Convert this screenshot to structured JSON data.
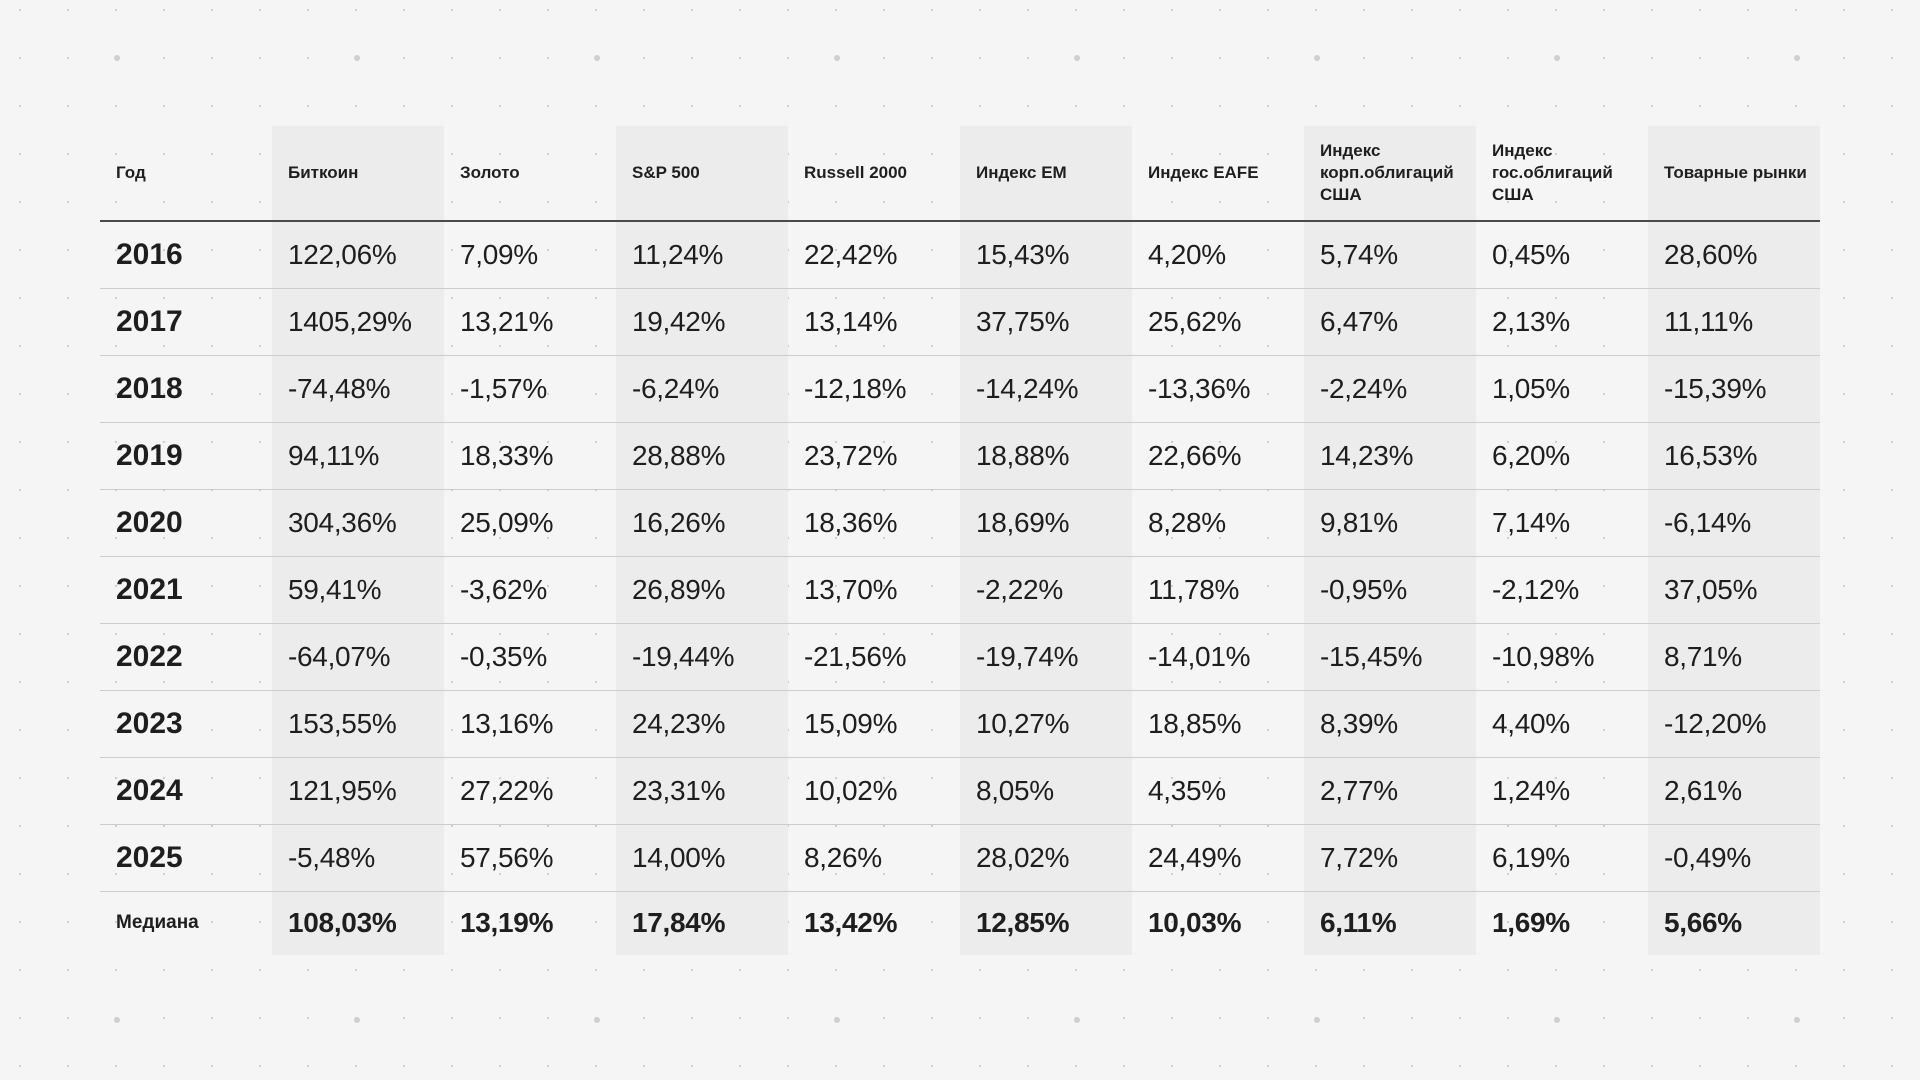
{
  "table": {
    "headers": [
      "Год",
      "Биткоин",
      "Золото",
      "S&P 500",
      "Russell 2000",
      "Индекс EM",
      "Индекс EAFE",
      "Индекс корп.облигаций США",
      "Индекс гос.облигаций США",
      "Товарные рынки"
    ],
    "rows": [
      [
        "2016",
        "122,06%",
        "7,09%",
        "11,24%",
        "22,42%",
        "15,43%",
        "4,20%",
        "5,74%",
        "0,45%",
        "28,60%"
      ],
      [
        "2017",
        "1405,29%",
        "13,21%",
        "19,42%",
        "13,14%",
        "37,75%",
        "25,62%",
        "6,47%",
        "2,13%",
        "11,11%"
      ],
      [
        "2018",
        "-74,48%",
        "-1,57%",
        "-6,24%",
        "-12,18%",
        "-14,24%",
        "-13,36%",
        "-2,24%",
        "1,05%",
        "-15,39%"
      ],
      [
        "2019",
        "94,11%",
        "18,33%",
        "28,88%",
        "23,72%",
        "18,88%",
        "22,66%",
        "14,23%",
        "6,20%",
        "16,53%"
      ],
      [
        "2020",
        "304,36%",
        "25,09%",
        "16,26%",
        "18,36%",
        "18,69%",
        "8,28%",
        "9,81%",
        "7,14%",
        "-6,14%"
      ],
      [
        "2021",
        "59,41%",
        "-3,62%",
        "26,89%",
        "13,70%",
        "-2,22%",
        "11,78%",
        "-0,95%",
        "-2,12%",
        "37,05%"
      ],
      [
        "2022",
        "-64,07%",
        "-0,35%",
        "-19,44%",
        "-21,56%",
        "-19,74%",
        "-14,01%",
        "-15,45%",
        "-10,98%",
        "8,71%"
      ],
      [
        "2023",
        "153,55%",
        "13,16%",
        "24,23%",
        "15,09%",
        "10,27%",
        "18,85%",
        "8,39%",
        "4,40%",
        "-12,20%"
      ],
      [
        "2024",
        "121,95%",
        "27,22%",
        "23,31%",
        "10,02%",
        "8,05%",
        "4,35%",
        "2,77%",
        "1,24%",
        "2,61%"
      ],
      [
        "2025",
        "-5,48%",
        "57,56%",
        "14,00%",
        "8,26%",
        "28,02%",
        "24,49%",
        "7,72%",
        "6,19%",
        "-0,49%"
      ]
    ],
    "median": [
      "Медиана",
      "108,03%",
      "13,19%",
      "17,84%",
      "13,42%",
      "12,85%",
      "10,03%",
      "6,11%",
      "1,69%",
      "5,66%"
    ]
  },
  "colors": {
    "background": "#f5f5f5",
    "shaded_column": "#ececec",
    "header_rule": "#4a4a4a",
    "row_rule": "#cdcdcd",
    "text": "#1e1e1e"
  },
  "chart_data": {
    "type": "table",
    "title": "",
    "columns": [
      "Год",
      "Биткоин",
      "Золото",
      "S&P 500",
      "Russell 2000",
      "Индекс EM",
      "Индекс EAFE",
      "Индекс корп.облигаций США",
      "Индекс гос.облигаций США",
      "Товарные рынки"
    ],
    "categories": [
      "2016",
      "2017",
      "2018",
      "2019",
      "2020",
      "2021",
      "2022",
      "2023",
      "2024",
      "2025",
      "Медиана"
    ],
    "series": [
      {
        "name": "Биткоин",
        "values": [
          122.06,
          1405.29,
          -74.48,
          94.11,
          304.36,
          59.41,
          -64.07,
          153.55,
          121.95,
          -5.48,
          108.03
        ]
      },
      {
        "name": "Золото",
        "values": [
          7.09,
          13.21,
          -1.57,
          18.33,
          25.09,
          -3.62,
          -0.35,
          13.16,
          27.22,
          57.56,
          13.19
        ]
      },
      {
        "name": "S&P 500",
        "values": [
          11.24,
          19.42,
          -6.24,
          28.88,
          16.26,
          26.89,
          -19.44,
          24.23,
          23.31,
          14.0,
          17.84
        ]
      },
      {
        "name": "Russell 2000",
        "values": [
          22.42,
          13.14,
          -12.18,
          23.72,
          18.36,
          13.7,
          -21.56,
          15.09,
          10.02,
          8.26,
          13.42
        ]
      },
      {
        "name": "Индекс EM",
        "values": [
          15.43,
          37.75,
          -14.24,
          18.88,
          18.69,
          -2.22,
          -19.74,
          10.27,
          8.05,
          28.02,
          12.85
        ]
      },
      {
        "name": "Индекс EAFE",
        "values": [
          4.2,
          25.62,
          -13.36,
          22.66,
          8.28,
          11.78,
          -14.01,
          18.85,
          4.35,
          24.49,
          10.03
        ]
      },
      {
        "name": "Индекс корп.облигаций США",
        "values": [
          5.74,
          6.47,
          -2.24,
          14.23,
          9.81,
          -0.95,
          -15.45,
          8.39,
          2.77,
          7.72,
          6.11
        ]
      },
      {
        "name": "Индекс гос.облигаций США",
        "values": [
          0.45,
          2.13,
          1.05,
          6.2,
          7.14,
          -2.12,
          -10.98,
          4.4,
          1.24,
          6.19,
          1.69
        ]
      },
      {
        "name": "Товарные рынки",
        "values": [
          28.6,
          11.11,
          -15.39,
          16.53,
          -6.14,
          37.05,
          8.71,
          -12.2,
          2.61,
          -0.49,
          5.66
        ]
      }
    ],
    "unit": "%"
  }
}
